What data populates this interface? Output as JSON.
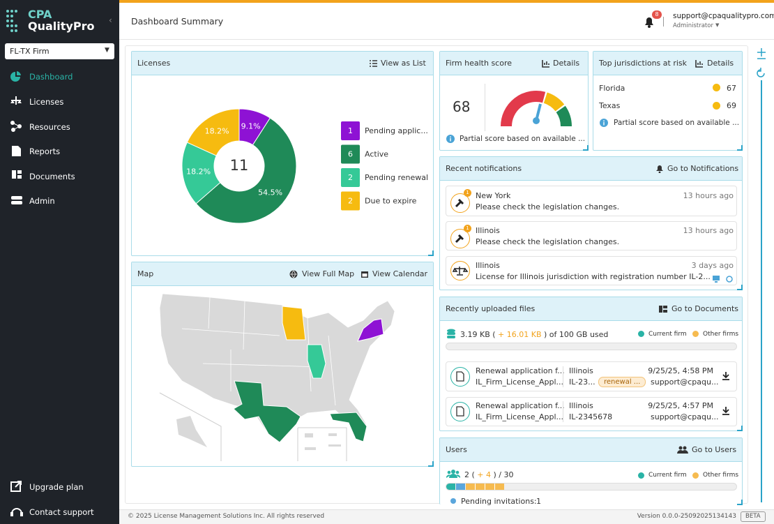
{
  "sidebar": {
    "brand_top": "CPA",
    "brand_bottom": "QualityPro",
    "firm": "FL-TX Firm",
    "nav": [
      "Dashboard",
      "Licenses",
      "Resources",
      "Reports",
      "Documents",
      "Admin"
    ],
    "bottom_nav": [
      "Upgrade plan",
      "Contact support"
    ]
  },
  "header": {
    "title": "Dashboard Summary",
    "notification_count": 8,
    "email": "support@cpaqualitypro.com",
    "role": "Administrator"
  },
  "chart_data": {
    "type": "donut",
    "title": "Licenses",
    "action": "View as List",
    "total": 11,
    "categories": [
      "Pending applic...",
      "Active",
      "Pending renewal",
      "Due to expire"
    ],
    "counts": [
      1,
      6,
      2,
      2
    ],
    "values": [
      9.1,
      54.5,
      18.2,
      18.2
    ],
    "value_labels": [
      "9.1%",
      "54.5%",
      "18.2%",
      "18.2%"
    ],
    "colors": [
      "#8e12d4",
      "#1f8a58",
      "#35c997",
      "#f6bb10"
    ]
  },
  "map": {
    "title": "Map",
    "actions": [
      "View Full Map",
      "View Calendar"
    ]
  },
  "health": {
    "title": "Firm health score",
    "action": "Details",
    "score": 68,
    "note": "Partial score based on available ..."
  },
  "jurisdictions": {
    "title": "Top jurisdictions at risk",
    "action": "Details",
    "rows": [
      {
        "name": "Florida",
        "score": 67
      },
      {
        "name": "Texas",
        "score": 69
      }
    ],
    "note": "Partial score based on available ..."
  },
  "notifications": {
    "title": "Recent notifications",
    "action": "Go to Notifications",
    "items": [
      {
        "place": "New York",
        "time": "13 hours ago",
        "message": "Please check the legislation changes.",
        "badge": 1
      },
      {
        "place": "Illinois",
        "time": "13 hours ago",
        "message": "Please check the legislation changes.",
        "badge": 1
      },
      {
        "place": "Illinois",
        "time": "3 days ago",
        "message": "License for Illinois jurisdiction with registration number IL-2..."
      }
    ]
  },
  "files": {
    "title": "Recently uploaded files",
    "action": "Go to Documents",
    "usage_used": "3.19 KB (",
    "usage_other": "+ 16.01 KB",
    "usage_total": ") of 100 GB used",
    "legend": [
      "Current firm",
      "Other firms"
    ],
    "items": [
      {
        "name": "Renewal application f...",
        "file": "IL_Firm_License_Appl...",
        "state": "Illinois",
        "id": "IL-23...",
        "tag": "renewal ...",
        "date": "9/25/25, 4:58 PM",
        "user": "support@cpaqu..."
      },
      {
        "name": "Renewal application f...",
        "file": "IL_Firm_License_Appl...",
        "state": "Illinois",
        "id": "IL-2345678",
        "date": "9/25/25, 4:57 PM",
        "user": "support@cpaqu..."
      }
    ]
  },
  "users": {
    "title": "Users",
    "action": "Go to Users",
    "count": "2 (",
    "other": "+ 4",
    "total": ") / 30",
    "legend": [
      "Current firm",
      "Other firms"
    ],
    "pending_label": "Pending invitations:",
    "pending": 1
  },
  "footer": {
    "copyright": "© 2025 License Management Solutions Inc. All rights reserved",
    "version": "Version 0.0.0-25092025134143",
    "badge": "BETA"
  }
}
